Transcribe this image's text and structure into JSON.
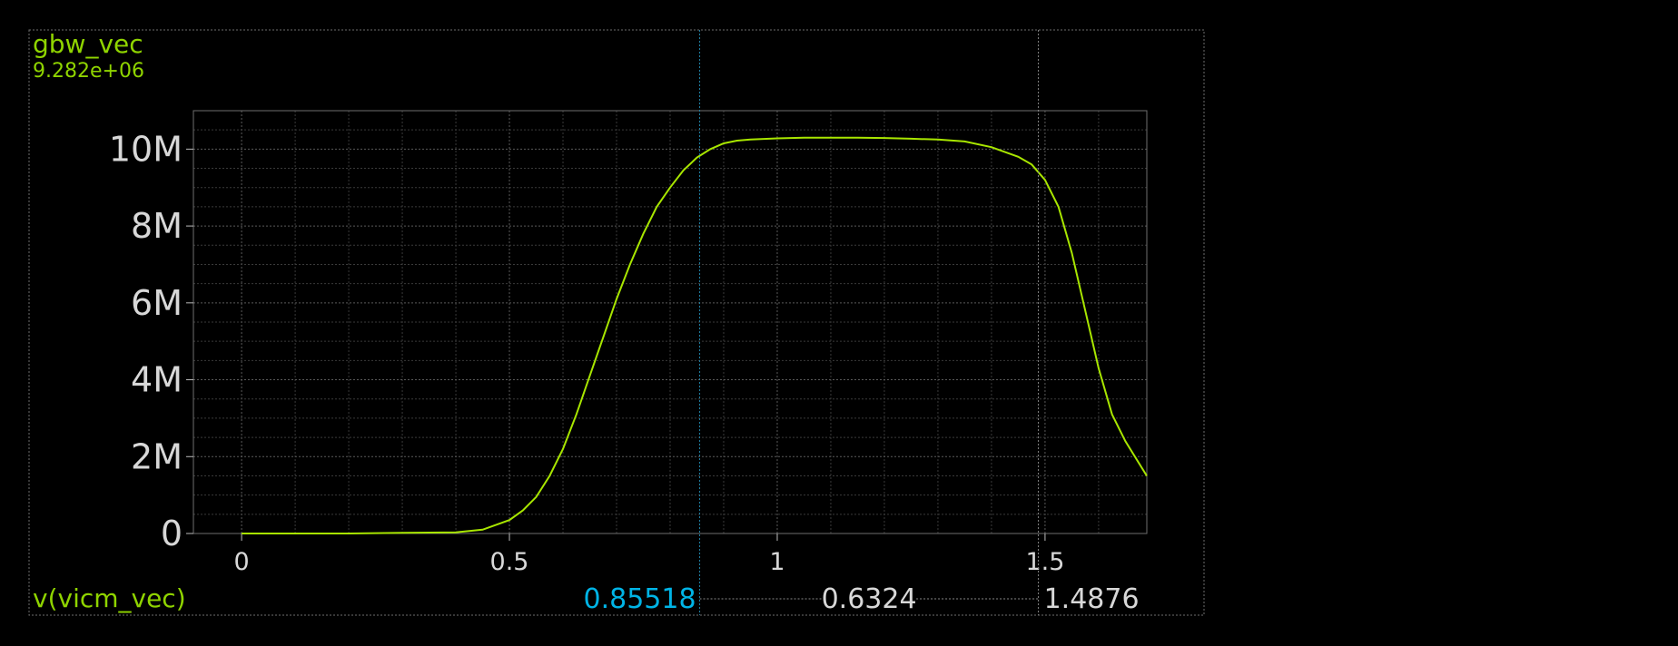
{
  "colors": {
    "background": "#000000",
    "trace": "#a8e600",
    "label_green": "#8fd400",
    "cursor_a": "#00b4e6",
    "cursor_b": "#d8d8d8"
  },
  "chart_data": {
    "type": "line",
    "series": [
      {
        "name": "gbw_vec",
        "x": [
          0,
          0.1,
          0.2,
          0.3,
          0.4,
          0.45,
          0.5,
          0.525,
          0.55,
          0.575,
          0.6,
          0.625,
          0.65,
          0.675,
          0.7,
          0.725,
          0.75,
          0.775,
          0.8,
          0.825,
          0.85,
          0.875,
          0.9,
          0.925,
          0.95,
          1.0,
          1.05,
          1.1,
          1.15,
          1.2,
          1.25,
          1.3,
          1.35,
          1.4,
          1.45,
          1.475,
          1.5,
          1.525,
          1.55,
          1.575,
          1.6,
          1.625,
          1.65,
          1.69
        ],
        "values": [
          0,
          0,
          0,
          20000.0,
          30000.0,
          100000.0,
          350000.0,
          600000.0,
          950000.0,
          1500000.0,
          2200000.0,
          3100000.0,
          4100000.0,
          5100000.0,
          6100000.0,
          7000000.0,
          7800000.0,
          8500000.0,
          9000000.0,
          9450000.0,
          9780000.0,
          10000000.0,
          10150000.0,
          10220000.0,
          10250000.0,
          10280000.0,
          10300000.0,
          10300000.0,
          10300000.0,
          10290000.0,
          10270000.0,
          10250000.0,
          10200000.0,
          10050000.0,
          9800000.0,
          9600000.0,
          9200000.0,
          8500000.0,
          7300000.0,
          5800000.0,
          4300000.0,
          3100000.0,
          2400000.0,
          1500000.0
        ]
      }
    ],
    "trace_value": "9.282e+06",
    "xlabel": "v(vicm_vec)",
    "xlim": [
      -0.09,
      1.69
    ],
    "ylim": [
      0,
      11000000.0
    ],
    "xticks": [
      0,
      0.5,
      1,
      1.5
    ],
    "xtick_labels": [
      "0",
      "0.5",
      "1",
      "1.5"
    ],
    "yticks": [
      0,
      2000000.0,
      4000000.0,
      6000000.0,
      8000000.0,
      10000000.0
    ],
    "ytick_labels": [
      "0",
      "2M",
      "4M",
      "6M",
      "8M",
      "10M"
    ],
    "grid": true,
    "cursors": {
      "a": 0.85518,
      "a_label": "0.85518",
      "b": 1.4876,
      "b_label": "1.4876",
      "delta_label": "0.6324"
    }
  }
}
